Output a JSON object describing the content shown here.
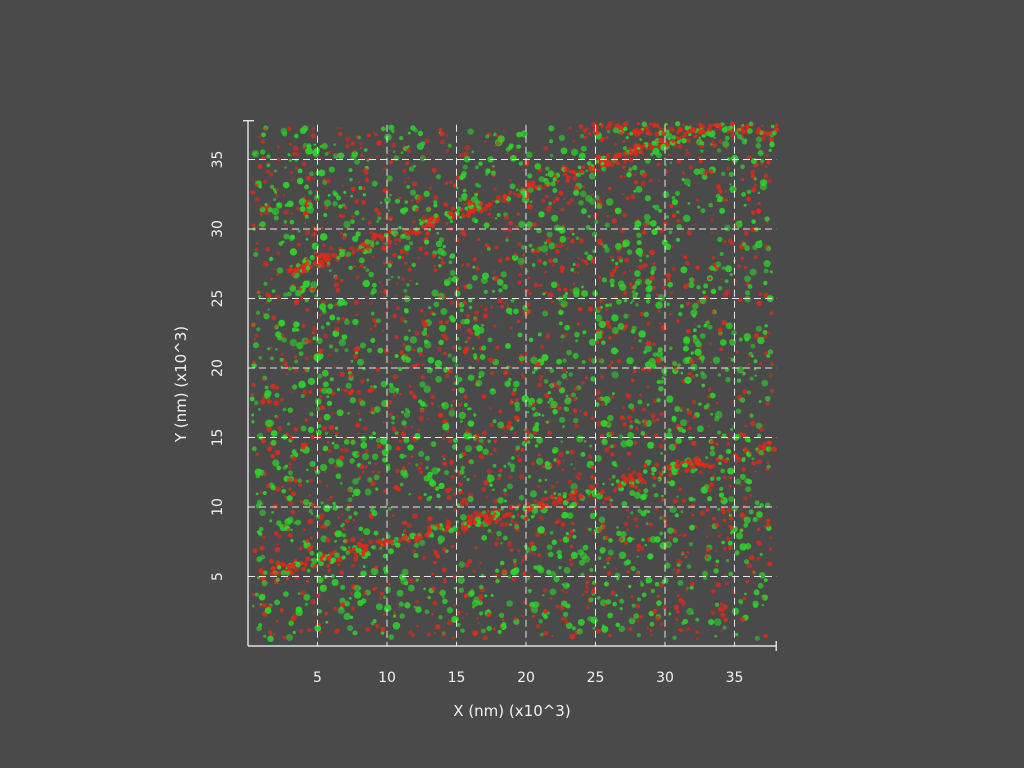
{
  "chart_data": {
    "type": "scatter",
    "title": "",
    "xlabel": "X (nm) (x10^3)",
    "ylabel": "Y (nm) (x10^3)",
    "xlim": [
      0,
      38
    ],
    "ylim": [
      0,
      37.5
    ],
    "xticks": [
      "5",
      "10",
      "15",
      "20",
      "25",
      "30",
      "35"
    ],
    "yticks": [
      "5",
      "10",
      "15",
      "20",
      "25",
      "30",
      "35"
    ],
    "grid": true,
    "background_color": "#4a4a4a",
    "series_colors": [
      "#e02a1a",
      "#2ed52a"
    ],
    "point_density": "dense, roughly uniform over the field of view",
    "features": [
      {
        "kind": "diagonal red band",
        "from": [
          3,
          27
        ],
        "to": [
          33,
          37.2
        ]
      },
      {
        "kind": "diagonal red band",
        "from": [
          0.5,
          5
        ],
        "to": [
          38,
          14.5
        ]
      },
      {
        "kind": "horizontal red band",
        "from": [
          24,
          37.2
        ],
        "to": [
          38,
          37.2
        ]
      }
    ]
  }
}
